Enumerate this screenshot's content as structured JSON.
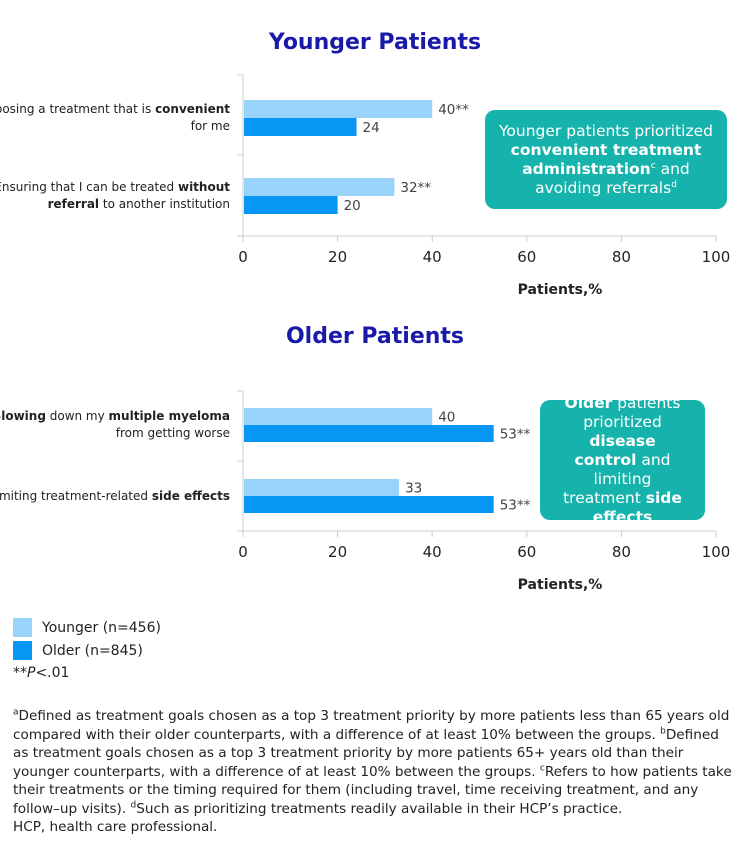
{
  "colors": {
    "younger": "#99d3fa",
    "older": "#0796f4",
    "title": "#1a1aa8",
    "callout": "#16b3ac"
  },
  "chart_data": [
    {
      "type": "bar",
      "orientation": "horizontal",
      "title": "Younger Patients",
      "xlabel": "Patients,%",
      "xlim": [
        0,
        100
      ],
      "xticks": [
        "0",
        "20",
        "40",
        "60",
        "80",
        "100"
      ],
      "categories": [
        {
          "parts": [
            {
              "text": "Choosing a treatment that is ",
              "bold": false
            },
            {
              "text": "convenient",
              "bold": true
            }
          ],
          "line2": [
            {
              "text": "for me",
              "bold": false
            }
          ]
        },
        {
          "parts": [
            {
              "text": "Ensuring that I can be treated ",
              "bold": false
            },
            {
              "text": "without",
              "bold": true
            }
          ],
          "line2": [
            {
              "text": "referral",
              "bold": true
            },
            {
              "text": " to another institution",
              "bold": false
            }
          ]
        }
      ],
      "series": [
        {
          "name": "Younger (n=456)",
          "values": [
            40,
            32
          ],
          "labels": [
            "40**",
            "32**"
          ]
        },
        {
          "name": "Older (n=845)",
          "values": [
            24,
            20
          ],
          "labels": [
            "24",
            "20"
          ]
        }
      ]
    },
    {
      "type": "bar",
      "orientation": "horizontal",
      "title": "Older Patients",
      "xlabel": "Patients,%",
      "xlim": [
        0,
        100
      ],
      "xticks": [
        "0",
        "20",
        "40",
        "60",
        "80",
        "100"
      ],
      "categories": [
        {
          "parts": [
            {
              "text": "Slowing",
              "bold": true
            },
            {
              "text": " down my ",
              "bold": false
            },
            {
              "text": "multiple myeloma",
              "bold": true
            }
          ],
          "line2": [
            {
              "text": "from getting worse",
              "bold": false
            }
          ]
        },
        {
          "parts": [
            {
              "text": "Limiting treatment-related ",
              "bold": false
            },
            {
              "text": "side effects",
              "bold": true
            }
          ],
          "line2": []
        }
      ],
      "series": [
        {
          "name": "Younger (n=456)",
          "values": [
            40,
            33
          ],
          "labels": [
            "40",
            "33"
          ]
        },
        {
          "name": "Older (n=845)",
          "values": [
            53,
            53
          ],
          "labels": [
            "53**",
            "53**"
          ]
        }
      ]
    }
  ],
  "callouts": {
    "younger": {
      "t1": "Younger patients prioritized",
      "t2": "convenient treatment",
      "t3": "administration",
      "t3sup": "c",
      "t4": " and",
      "t5": "avoiding referrals",
      "t5sup": "d"
    },
    "older": {
      "t1": "Older",
      "t2": " patients",
      "t3": "prioritized ",
      "t4": "disease",
      "t5": "control",
      "t6": " and limiting",
      "t7": "treatment ",
      "t8": "side",
      "t9": "effects"
    }
  },
  "legend": {
    "younger": "Younger (n=456)",
    "older": "Older (n=845)"
  },
  "significance": {
    "stars": "**",
    "p": "P",
    "rest": "<.01"
  },
  "footnotes": {
    "a_sup": "a",
    "a": "Defined as treatment goals chosen as a top 3 treatment priority by more patients less than 65 years old compared with their older counterparts, with a difference of at least 10% between the groups. ",
    "b_sup": "b",
    "b": "Defined as treatment goals chosen as a top 3 treatment priority by more patients 65+ years old than their younger counterparts, with a difference of at least 10% between the groups. ",
    "c_sup": "c",
    "c": "Refers to how patients take their treatments or the timing required for them (including travel, time receiving treatment, and any follow–up visits). ",
    "d_sup": "d",
    "d": "Such as prioritizing treatments readily available in their HCP’s practice.",
    "hcp": "HCP, health care professional."
  }
}
